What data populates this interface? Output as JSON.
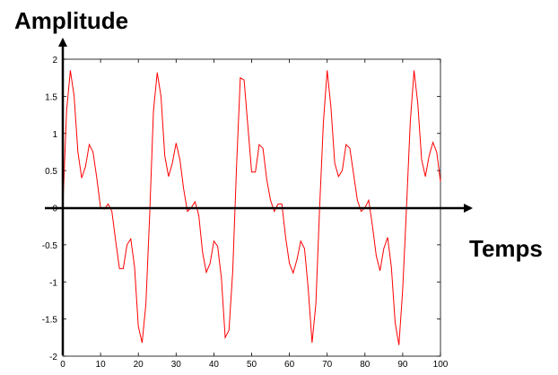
{
  "chart_data": {
    "type": "line",
    "title": "",
    "xlabel": "Temps",
    "ylabel": "Amplitude",
    "xlim": [
      0,
      100
    ],
    "ylim": [
      -2,
      2
    ],
    "xticks": [
      0,
      10,
      20,
      30,
      40,
      50,
      60,
      70,
      80,
      90,
      100
    ],
    "xtick_labels": [
      "0",
      "10",
      "20",
      "30",
      "40",
      "50",
      "60",
      "70",
      "80",
      "90",
      "100"
    ],
    "yticks": [
      -2,
      -1.5,
      -1,
      -0.5,
      0,
      0.5,
      1,
      1.5,
      2
    ],
    "ytick_labels": [
      "-2",
      "-1.5",
      "-1",
      "-0.5",
      "0",
      "0.5",
      "1",
      "1.5",
      "2"
    ],
    "grid": false,
    "colors": {
      "line": "#ff0000",
      "axes": "#000000"
    },
    "series": [
      {
        "x": [
          0,
          1,
          2,
          3,
          4,
          5,
          6,
          7,
          8,
          9,
          10,
          11,
          12,
          13,
          14,
          15,
          16,
          17,
          18,
          19,
          20,
          21,
          22,
          23,
          24,
          25,
          26,
          27,
          28,
          29,
          30,
          31,
          32,
          33,
          34,
          35,
          36,
          37,
          38,
          39,
          40,
          41,
          42,
          43,
          44,
          45,
          46,
          47,
          48,
          49,
          50,
          51,
          52,
          53,
          54,
          55,
          56,
          57,
          58,
          59,
          60,
          61,
          62,
          63,
          64,
          65,
          66,
          67,
          68,
          69,
          70,
          71,
          72,
          73,
          74,
          75,
          76,
          77,
          78,
          79,
          80,
          81,
          82,
          83,
          84,
          85,
          86,
          87,
          88,
          89,
          90,
          91,
          92,
          93,
          94,
          95,
          96,
          97,
          98,
          99,
          100
        ],
        "values": [
          0.0,
          1.3,
          1.85,
          1.5,
          0.75,
          0.4,
          0.55,
          0.85,
          0.75,
          0.4,
          0.0,
          -0.02,
          0.05,
          -0.05,
          -0.45,
          -0.82,
          -0.82,
          -0.5,
          -0.42,
          -0.8,
          -1.6,
          -1.82,
          -1.3,
          -0.1,
          1.3,
          1.82,
          1.5,
          0.7,
          0.42,
          0.6,
          0.87,
          0.65,
          0.25,
          -0.05,
          0.0,
          0.08,
          -0.1,
          -0.6,
          -0.87,
          -0.75,
          -0.45,
          -0.52,
          -0.95,
          -1.75,
          -1.65,
          -0.85,
          0.55,
          1.75,
          1.72,
          1.1,
          0.48,
          0.48,
          0.85,
          0.8,
          0.38,
          0.1,
          -0.05,
          0.05,
          0.05,
          -0.4,
          -0.75,
          -0.88,
          -0.7,
          -0.45,
          -0.55,
          -1.1,
          -1.82,
          -1.3,
          0.0,
          1.15,
          1.85,
          1.35,
          0.6,
          0.42,
          0.5,
          0.85,
          0.8,
          0.45,
          0.1,
          -0.05,
          0.0,
          0.1,
          -0.25,
          -0.65,
          -0.85,
          -0.55,
          -0.4,
          -0.8,
          -1.55,
          -1.85,
          -1.1,
          0.0,
          1.15,
          1.85,
          1.4,
          0.65,
          0.42,
          0.7,
          0.88,
          0.75,
          0.35
        ]
      }
    ]
  }
}
